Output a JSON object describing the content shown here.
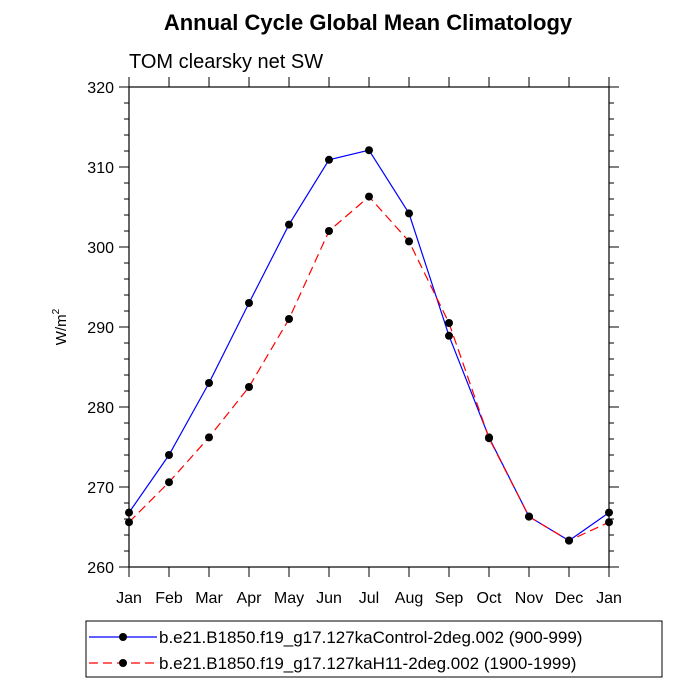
{
  "chart_data": {
    "type": "line",
    "title": "Annual Cycle Global Mean Climatology",
    "subtitle": "TOM clearsky net SW",
    "ylabel": "W/m",
    "ylabel_superscript": "2",
    "xlabel": "",
    "ylim": [
      260,
      320
    ],
    "yticks": [
      260,
      270,
      280,
      290,
      300,
      310,
      320
    ],
    "categories": [
      "Jan",
      "Feb",
      "Mar",
      "Apr",
      "May",
      "Jun",
      "Jul",
      "Aug",
      "Sep",
      "Oct",
      "Nov",
      "Dec",
      "Jan"
    ],
    "series": [
      {
        "name": "b.e21.B1850.f19_g17.127kaControl-2deg.002 (900-999)",
        "color": "#0000ff",
        "dash": "solid",
        "values": [
          266.8,
          274.0,
          283.0,
          293.0,
          302.8,
          310.9,
          312.1,
          304.2,
          288.9,
          276.2,
          266.3,
          263.3,
          266.8
        ]
      },
      {
        "name": "b.e21.B1850.f19_g17.127kaH11-2deg.002 (1900-1999)",
        "color": "#ff0000",
        "dash": "dashed",
        "values": [
          265.6,
          270.6,
          276.2,
          282.5,
          291.0,
          302.0,
          306.3,
          300.7,
          290.5,
          276.1,
          266.3,
          263.3,
          265.6
        ]
      }
    ],
    "legend_position": "bottom",
    "marker_color": "#000000"
  }
}
